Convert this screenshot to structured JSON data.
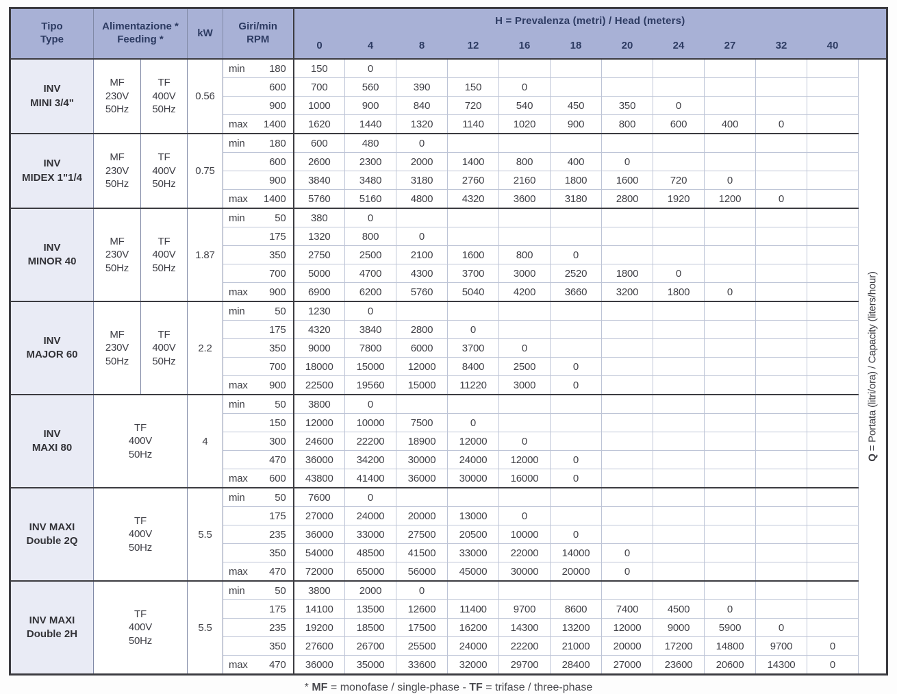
{
  "colors": {
    "header_bg": "#a8b1d6",
    "header_text": "#2d3b62",
    "type_col_bg": "#e9ebf5",
    "border_dark": "#3b3b40",
    "border_light": "#bdc4d6",
    "text": "#414147"
  },
  "header": {
    "tipo_line1": "Tipo",
    "tipo_line2": "Type",
    "feeding_line1": "Alimentazione *",
    "feeding_line2": "Feeding *",
    "kw": "kW",
    "rpm_line1": "Giri/min",
    "rpm_line2": "RPM",
    "h_bold": "H",
    "h_rest": " = Prevalenza (metri) / Head (meters)",
    "h_columns": [
      "0",
      "4",
      "8",
      "12",
      "16",
      "18",
      "20",
      "24",
      "27",
      "32",
      "40"
    ]
  },
  "q_label": {
    "bold": "Q",
    "rest": " = Portata (litri/ora) / Capacity (liters/hour)"
  },
  "footnote": {
    "star": "* ",
    "mf": "MF",
    "mf_text": " = monofase / single-phase - ",
    "tf": "TF",
    "tf_text": " = trifase / three-phase"
  },
  "groups": [
    {
      "type": [
        "INV",
        "MINI 3/4\""
      ],
      "feeding": [
        [
          "MF",
          "230V",
          "50Hz"
        ],
        [
          "TF",
          "400V",
          "50Hz"
        ]
      ],
      "kw": "0.56",
      "rows": [
        {
          "label": "min",
          "rpm": "180",
          "values": [
            150,
            0
          ]
        },
        {
          "label": "",
          "rpm": "600",
          "values": [
            700,
            560,
            390,
            150,
            0
          ]
        },
        {
          "label": "",
          "rpm": "900",
          "values": [
            1000,
            900,
            840,
            720,
            540,
            450,
            350,
            0
          ]
        },
        {
          "label": "max",
          "rpm": "1400",
          "values": [
            1620,
            1440,
            1320,
            1140,
            1020,
            900,
            800,
            600,
            400,
            0
          ]
        }
      ]
    },
    {
      "type": [
        "INV",
        "MIDEX 1\"1/4"
      ],
      "feeding": [
        [
          "MF",
          "230V",
          "50Hz"
        ],
        [
          "TF",
          "400V",
          "50Hz"
        ]
      ],
      "kw": "0.75",
      "rows": [
        {
          "label": "min",
          "rpm": "180",
          "values": [
            600,
            480,
            0
          ]
        },
        {
          "label": "",
          "rpm": "600",
          "values": [
            2600,
            2300,
            2000,
            1400,
            800,
            400,
            0
          ]
        },
        {
          "label": "",
          "rpm": "900",
          "values": [
            3840,
            3480,
            3180,
            2760,
            2160,
            1800,
            1600,
            720,
            0
          ]
        },
        {
          "label": "max",
          "rpm": "1400",
          "values": [
            5760,
            5160,
            4800,
            4320,
            3600,
            3180,
            2800,
            1920,
            1200,
            0
          ]
        }
      ]
    },
    {
      "type": [
        "INV",
        "MINOR 40"
      ],
      "feeding": [
        [
          "MF",
          "230V",
          "50Hz"
        ],
        [
          "TF",
          "400V",
          "50Hz"
        ]
      ],
      "kw": "1.87",
      "rows": [
        {
          "label": "min",
          "rpm": "50",
          "values": [
            380,
            0
          ]
        },
        {
          "label": "",
          "rpm": "175",
          "values": [
            1320,
            800,
            0
          ]
        },
        {
          "label": "",
          "rpm": "350",
          "values": [
            2750,
            2500,
            2100,
            1600,
            800,
            0
          ]
        },
        {
          "label": "",
          "rpm": "700",
          "values": [
            5000,
            4700,
            4300,
            3700,
            3000,
            2520,
            1800,
            0
          ]
        },
        {
          "label": "max",
          "rpm": "900",
          "values": [
            6900,
            6200,
            5760,
            5040,
            4200,
            3660,
            3200,
            1800,
            0
          ]
        }
      ]
    },
    {
      "type": [
        "INV",
        "MAJOR 60"
      ],
      "feeding": [
        [
          "MF",
          "230V",
          "50Hz"
        ],
        [
          "TF",
          "400V",
          "50Hz"
        ]
      ],
      "kw": "2.2",
      "rows": [
        {
          "label": "min",
          "rpm": "50",
          "values": [
            1230,
            0
          ]
        },
        {
          "label": "",
          "rpm": "175",
          "values": [
            4320,
            3840,
            2800,
            0
          ]
        },
        {
          "label": "",
          "rpm": "350",
          "values": [
            9000,
            7800,
            6000,
            3700,
            0
          ]
        },
        {
          "label": "",
          "rpm": "700",
          "values": [
            18000,
            15000,
            12000,
            8400,
            2500,
            0
          ]
        },
        {
          "label": "max",
          "rpm": "900",
          "values": [
            22500,
            19560,
            15000,
            11220,
            3000,
            0
          ]
        }
      ]
    },
    {
      "type": [
        "INV",
        "MAXI 80"
      ],
      "feeding": [
        [
          "TF",
          "400V",
          "50Hz"
        ]
      ],
      "kw": "4",
      "rows": [
        {
          "label": "min",
          "rpm": "50",
          "values": [
            3800,
            0
          ]
        },
        {
          "label": "",
          "rpm": "150",
          "values": [
            12000,
            10000,
            7500,
            0
          ]
        },
        {
          "label": "",
          "rpm": "300",
          "values": [
            24600,
            22200,
            18900,
            12000,
            0
          ]
        },
        {
          "label": "",
          "rpm": "470",
          "values": [
            36000,
            34200,
            30000,
            24000,
            12000,
            0
          ]
        },
        {
          "label": "max",
          "rpm": "600",
          "values": [
            43800,
            41400,
            36000,
            30000,
            16000,
            0
          ]
        }
      ]
    },
    {
      "type": [
        "INV MAXI",
        "Double 2Q"
      ],
      "feeding": [
        [
          "TF",
          "400V",
          "50Hz"
        ]
      ],
      "kw": "5.5",
      "rows": [
        {
          "label": "min",
          "rpm": "50",
          "values": [
            7600,
            0
          ]
        },
        {
          "label": "",
          "rpm": "175",
          "values": [
            27000,
            24000,
            20000,
            13000,
            0
          ]
        },
        {
          "label": "",
          "rpm": "235",
          "values": [
            36000,
            33000,
            27500,
            20500,
            10000,
            0
          ]
        },
        {
          "label": "",
          "rpm": "350",
          "values": [
            54000,
            48500,
            41500,
            33000,
            22000,
            14000,
            0
          ]
        },
        {
          "label": "max",
          "rpm": "470",
          "values": [
            72000,
            65000,
            56000,
            45000,
            30000,
            20000,
            0
          ]
        }
      ]
    },
    {
      "type": [
        "INV MAXI",
        "Double 2H"
      ],
      "feeding": [
        [
          "TF",
          "400V",
          "50Hz"
        ]
      ],
      "kw": "5.5",
      "rows": [
        {
          "label": "min",
          "rpm": "50",
          "values": [
            3800,
            2000,
            0
          ]
        },
        {
          "label": "",
          "rpm": "175",
          "values": [
            14100,
            13500,
            12600,
            11400,
            9700,
            8600,
            7400,
            4500,
            0
          ]
        },
        {
          "label": "",
          "rpm": "235",
          "values": [
            19200,
            18500,
            17500,
            16200,
            14300,
            13200,
            12000,
            9000,
            5900,
            0
          ]
        },
        {
          "label": "",
          "rpm": "350",
          "values": [
            27600,
            26700,
            25500,
            24000,
            22200,
            21000,
            20000,
            17200,
            14800,
            9700,
            0
          ]
        },
        {
          "label": "max",
          "rpm": "470",
          "values": [
            36000,
            35000,
            33600,
            32000,
            29700,
            28400,
            27000,
            23600,
            20600,
            14300,
            0
          ]
        }
      ]
    }
  ]
}
